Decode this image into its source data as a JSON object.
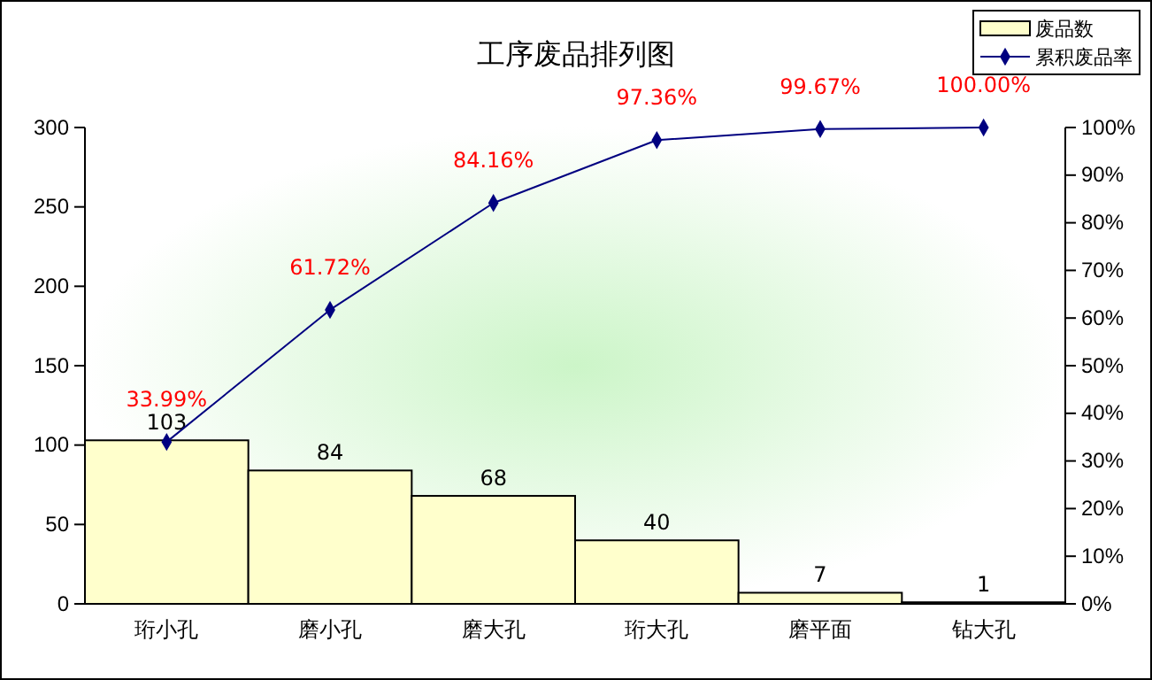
{
  "chart_data": {
    "type": "bar",
    "title": "工序废品排列图",
    "categories": [
      "珩小孔",
      "磨小孔",
      "磨大孔",
      "珩大孔",
      "磨平面",
      "钻大孔"
    ],
    "series": [
      {
        "name": "废品数",
        "color": "#ffffcc",
        "values": [
          103,
          84,
          68,
          40,
          7,
          1
        ],
        "value_labels": [
          "103",
          "84",
          "68",
          "40",
          "7",
          "1"
        ]
      },
      {
        "name": "累积废品率",
        "type": "line",
        "axis": "y2",
        "color": "#000080",
        "marker": "diamond",
        "values": [
          33.99,
          61.72,
          84.16,
          97.36,
          99.67,
          100
        ],
        "value_labels": [
          "33.99%",
          "61.72%",
          "84.16%",
          "97.36%",
          "99.67%",
          "100.00%"
        ]
      }
    ],
    "ylim": [
      0,
      300
    ],
    "yticks": [
      0,
      50,
      100,
      150,
      200,
      250,
      300
    ],
    "y2lim": [
      0,
      100
    ],
    "y2ticks": [
      {
        "value": 0,
        "label": "0%"
      },
      {
        "value": 10,
        "label": "10%"
      },
      {
        "value": 20,
        "label": "20%"
      },
      {
        "value": 30,
        "label": "30%"
      },
      {
        "value": 40,
        "label": "40%"
      },
      {
        "value": 50,
        "label": "50%"
      },
      {
        "value": 60,
        "label": "60%"
      },
      {
        "value": 70,
        "label": "70%"
      },
      {
        "value": 80,
        "label": "80%"
      },
      {
        "value": 90,
        "label": "90%"
      },
      {
        "value": 100,
        "label": "100%"
      }
    ],
    "grid": false,
    "legend": "top right"
  }
}
